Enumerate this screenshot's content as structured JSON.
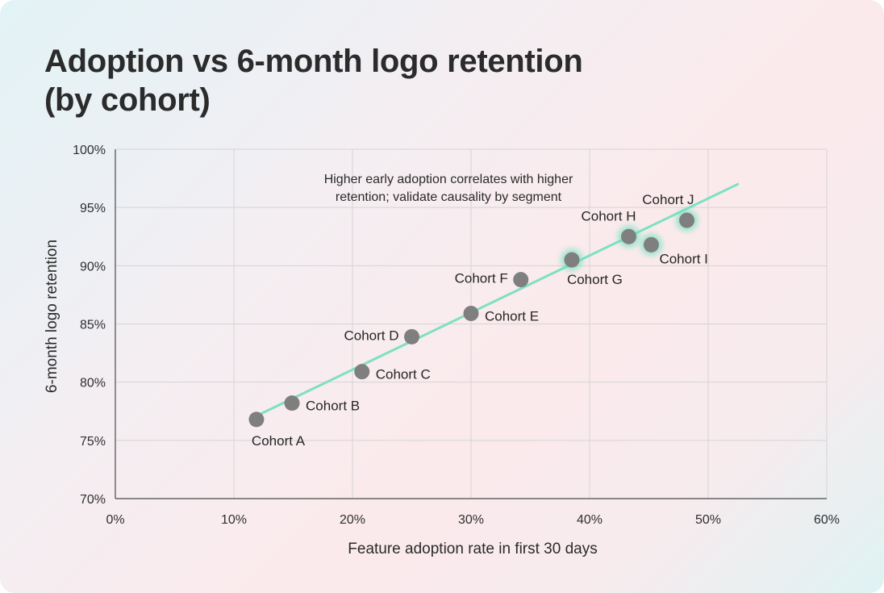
{
  "chart_data": {
    "type": "scatter",
    "title": "Adoption vs 6-month logo retention (by cohort)",
    "title_lines": [
      "Adoption vs 6-month logo retention",
      "(by cohort)"
    ],
    "xlabel": "Feature adoption rate in first 30 days",
    "ylabel": "6-month logo retention",
    "xlim": [
      0,
      60
    ],
    "ylim": [
      70,
      100
    ],
    "x_ticks": [
      0,
      10,
      20,
      30,
      40,
      50,
      60
    ],
    "y_ticks": [
      70,
      75,
      80,
      85,
      90,
      95,
      100
    ],
    "x_tick_labels": [
      "0%",
      "10%",
      "20%",
      "30%",
      "40%",
      "50%",
      "60%"
    ],
    "y_tick_labels": [
      "70%",
      "75%",
      "80%",
      "85%",
      "90%",
      "95%",
      "100%"
    ],
    "grid": true,
    "points": [
      {
        "label": "Cohort A",
        "x": 11.9,
        "y": 76.8,
        "highlight": false,
        "label_pos": "below"
      },
      {
        "label": "Cohort B",
        "x": 14.9,
        "y": 78.2,
        "highlight": false,
        "label_pos": "right"
      },
      {
        "label": "Cohort C",
        "x": 20.8,
        "y": 80.9,
        "highlight": false,
        "label_pos": "right"
      },
      {
        "label": "Cohort D",
        "x": 25.0,
        "y": 83.9,
        "highlight": false,
        "label_pos": "left"
      },
      {
        "label": "Cohort E",
        "x": 30.0,
        "y": 85.9,
        "highlight": false,
        "label_pos": "right"
      },
      {
        "label": "Cohort F",
        "x": 34.2,
        "y": 88.8,
        "highlight": false,
        "label_pos": "left"
      },
      {
        "label": "Cohort G",
        "x": 38.5,
        "y": 90.5,
        "highlight": true,
        "label_pos": "below-right"
      },
      {
        "label": "Cohort H",
        "x": 43.3,
        "y": 92.5,
        "highlight": true,
        "label_pos": "above-left"
      },
      {
        "label": "Cohort I",
        "x": 45.2,
        "y": 91.8,
        "highlight": true,
        "label_pos": "below-right"
      },
      {
        "label": "Cohort J",
        "x": 48.2,
        "y": 93.9,
        "highlight": true,
        "label_pos": "above-left"
      }
    ],
    "trendline": {
      "x": [
        11.9,
        52.5
      ],
      "y": [
        77.1,
        97.0
      ]
    },
    "annotation": [
      "Higher early adoption correlates with higher",
      "retention; validate causality by segment"
    ],
    "colors": {
      "point": "#7f7f7f",
      "trend": "#7fe0c4",
      "glow": "#5fe0b8",
      "grid": "#d6d3d6",
      "axis": "#4a4a4a"
    }
  }
}
